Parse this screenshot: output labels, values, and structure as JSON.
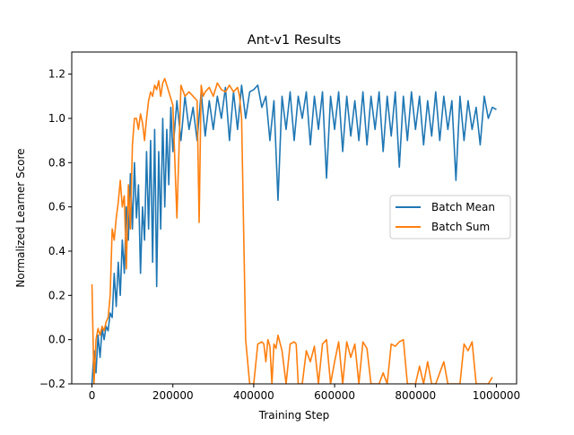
{
  "chart_data": {
    "type": "line",
    "title": "Ant-v1 Results",
    "xlabel": "Training Step",
    "ylabel": "Normalized Learner Score",
    "xlim": [
      -50000,
      1050000
    ],
    "ylim": [
      -0.2,
      1.3
    ],
    "xticks": [
      0,
      200000,
      400000,
      600000,
      800000,
      1000000
    ],
    "xtick_labels": [
      "0",
      "200000",
      "400000",
      "600000",
      "800000",
      "1000000"
    ],
    "yticks": [
      -0.2,
      0.0,
      0.2,
      0.4,
      0.6,
      0.8,
      1.0,
      1.2
    ],
    "ytick_labels": [
      "−0.2",
      "0.0",
      "0.2",
      "0.4",
      "0.6",
      "0.8",
      "1.0",
      "1.2"
    ],
    "grid": false,
    "legend_position": "center-right",
    "series": [
      {
        "name": "Batch Mean",
        "color": "#1f77b4",
        "x": [
          0,
          5000,
          10000,
          15000,
          20000,
          25000,
          30000,
          35000,
          40000,
          45000,
          50000,
          55000,
          60000,
          65000,
          70000,
          75000,
          80000,
          85000,
          90000,
          95000,
          100000,
          105000,
          110000,
          115000,
          120000,
          125000,
          130000,
          135000,
          140000,
          145000,
          150000,
          155000,
          160000,
          165000,
          170000,
          175000,
          180000,
          185000,
          190000,
          195000,
          200000,
          210000,
          220000,
          230000,
          240000,
          250000,
          260000,
          270000,
          280000,
          290000,
          300000,
          310000,
          320000,
          330000,
          340000,
          350000,
          360000,
          370000,
          380000,
          390000,
          400000,
          410000,
          420000,
          430000,
          440000,
          450000,
          460000,
          470000,
          480000,
          490000,
          500000,
          510000,
          520000,
          530000,
          540000,
          550000,
          560000,
          570000,
          580000,
          590000,
          600000,
          610000,
          620000,
          630000,
          640000,
          650000,
          660000,
          670000,
          680000,
          690000,
          700000,
          710000,
          720000,
          730000,
          740000,
          750000,
          760000,
          770000,
          780000,
          790000,
          800000,
          810000,
          820000,
          830000,
          840000,
          850000,
          860000,
          870000,
          880000,
          890000,
          900000,
          910000,
          920000,
          930000,
          940000,
          950000,
          960000,
          970000,
          980000,
          990000,
          1000000
        ],
        "y": [
          -0.2,
          -0.05,
          -0.15,
          0.02,
          -0.08,
          0.05,
          0.0,
          0.06,
          0.04,
          0.12,
          0.1,
          0.3,
          0.15,
          0.35,
          0.2,
          0.45,
          0.3,
          0.6,
          0.45,
          0.75,
          0.5,
          0.8,
          0.55,
          0.7,
          0.3,
          0.6,
          0.45,
          0.85,
          0.5,
          0.9,
          0.35,
          0.95,
          0.24,
          0.85,
          0.5,
          1.0,
          0.6,
          0.95,
          0.7,
          1.05,
          0.85,
          1.08,
          0.9,
          1.1,
          0.95,
          1.05,
          0.9,
          1.12,
          0.92,
          1.08,
          0.95,
          1.1,
          1.0,
          1.14,
          0.9,
          1.12,
          0.95,
          1.15,
          1.0,
          1.12,
          1.13,
          1.15,
          1.05,
          1.1,
          0.9,
          1.08,
          0.63,
          1.1,
          0.95,
          1.12,
          0.9,
          1.1,
          1.0,
          1.12,
          0.88,
          1.1,
          0.95,
          1.12,
          0.73,
          1.1,
          0.95,
          1.12,
          0.85,
          1.1,
          0.92,
          1.08,
          0.9,
          1.12,
          0.88,
          1.1,
          0.95,
          1.12,
          0.85,
          1.1,
          0.92,
          1.12,
          0.78,
          1.1,
          0.9,
          1.12,
          0.95,
          1.1,
          0.88,
          1.08,
          0.92,
          1.12,
          0.9,
          1.1,
          0.95,
          1.08,
          0.72,
          1.1,
          0.9,
          1.08,
          0.95,
          1.05,
          0.88,
          1.1,
          1.0,
          1.05,
          1.04
        ]
      },
      {
        "name": "Batch Sum",
        "color": "#ff7f0e",
        "x": [
          0,
          5000,
          10000,
          15000,
          20000,
          25000,
          30000,
          35000,
          40000,
          45000,
          50000,
          55000,
          60000,
          65000,
          70000,
          75000,
          80000,
          85000,
          90000,
          95000,
          100000,
          105000,
          110000,
          115000,
          120000,
          125000,
          130000,
          135000,
          140000,
          145000,
          150000,
          155000,
          160000,
          165000,
          170000,
          175000,
          180000,
          190000,
          200000,
          210000,
          220000,
          230000,
          240000,
          250000,
          260000,
          265000,
          270000,
          275000,
          280000,
          290000,
          300000,
          310000,
          320000,
          330000,
          340000,
          350000,
          360000,
          365000,
          370000,
          380000,
          390000,
          400000,
          410000,
          420000,
          425000,
          430000,
          435000,
          440000,
          445000,
          450000,
          455000,
          460000,
          470000,
          480000,
          490000,
          500000,
          505000,
          510000,
          520000,
          530000,
          540000,
          550000,
          560000,
          570000,
          580000,
          590000,
          600000,
          610000,
          620000,
          630000,
          640000,
          650000,
          660000,
          670000,
          680000,
          690000,
          700000,
          710000,
          720000,
          730000,
          740000,
          750000,
          760000,
          770000,
          780000,
          790000,
          800000,
          810000,
          820000,
          830000,
          840000,
          850000,
          860000,
          870000,
          880000,
          890000,
          900000,
          910000,
          920000,
          930000,
          940000,
          950000,
          960000,
          970000,
          980000,
          990000
        ],
        "y": [
          0.25,
          -0.2,
          0.0,
          0.05,
          0.02,
          0.06,
          0.04,
          0.08,
          0.1,
          0.2,
          0.5,
          0.45,
          0.55,
          0.62,
          0.72,
          0.6,
          0.65,
          0.32,
          0.7,
          0.5,
          0.88,
          1.0,
          1.0,
          0.95,
          1.02,
          0.98,
          0.9,
          1.0,
          1.08,
          1.12,
          1.1,
          1.15,
          1.13,
          1.17,
          1.1,
          1.16,
          1.18,
          1.12,
          1.06,
          0.55,
          1.15,
          1.1,
          1.12,
          1.1,
          1.08,
          0.53,
          1.15,
          1.1,
          1.12,
          1.14,
          1.1,
          1.16,
          1.13,
          1.12,
          1.15,
          1.12,
          1.14,
          1.1,
          1.0,
          0.0,
          -0.2,
          -0.2,
          -0.02,
          -0.01,
          -0.02,
          -0.1,
          0.0,
          -0.03,
          -0.2,
          -0.02,
          -0.04,
          0.02,
          -0.05,
          -0.2,
          -0.02,
          -0.01,
          -0.02,
          -0.2,
          -0.2,
          -0.05,
          -0.1,
          -0.03,
          -0.2,
          -0.02,
          0.0,
          -0.2,
          -0.1,
          -0.01,
          -0.2,
          -0.01,
          -0.08,
          -0.02,
          -0.2,
          -0.01,
          -0.04,
          -0.2,
          -0.2,
          -0.2,
          -0.15,
          -0.2,
          -0.02,
          -0.03,
          -0.01,
          0.0,
          -0.2,
          -0.2,
          -0.2,
          -0.12,
          -0.2,
          -0.1,
          -0.2,
          -0.2,
          -0.15,
          -0.1,
          -0.2,
          -0.2,
          -0.2,
          -0.2,
          -0.02,
          -0.05,
          -0.01,
          -0.2,
          -0.2,
          -0.2,
          -0.2,
          -0.17
        ]
      }
    ]
  }
}
